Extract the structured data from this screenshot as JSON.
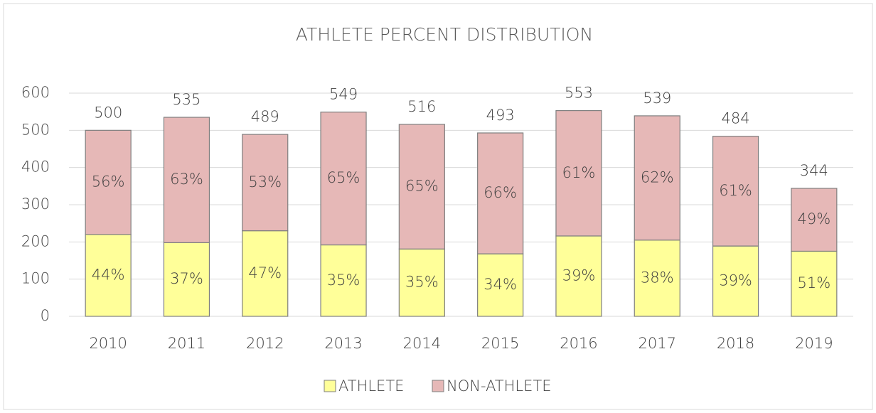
{
  "chart_data": {
    "type": "stacked_bar",
    "title": "ATHLETE PERCENT DISTRIBUTION",
    "categories": [
      "2010",
      "2011",
      "2012",
      "2013",
      "2014",
      "2015",
      "2016",
      "2017",
      "2018",
      "2019"
    ],
    "series": [
      {
        "name": "ATHLETE",
        "color": "#ffff99",
        "values": [
          220,
          198,
          230,
          192,
          181,
          168,
          216,
          205,
          189,
          175
        ],
        "percent_labels": [
          "44%",
          "37%",
          "47%",
          "35%",
          "35%",
          "34%",
          "39%",
          "38%",
          "39%",
          "51%"
        ]
      },
      {
        "name": "NON-ATHLETE",
        "color": "#e6b8b7",
        "values": [
          280,
          337,
          259,
          357,
          335,
          325,
          337,
          334,
          295,
          169
        ],
        "percent_labels": [
          "56%",
          "63%",
          "53%",
          "65%",
          "65%",
          "66%",
          "61%",
          "62%",
          "61%",
          "49%"
        ]
      }
    ],
    "totals": [
      500,
      535,
      489,
      549,
      516,
      493,
      553,
      539,
      484,
      344
    ],
    "ylim": [
      0,
      600
    ],
    "yticks": [
      0,
      100,
      200,
      300,
      400,
      500,
      600
    ],
    "grid": true,
    "legend": "bottom"
  }
}
